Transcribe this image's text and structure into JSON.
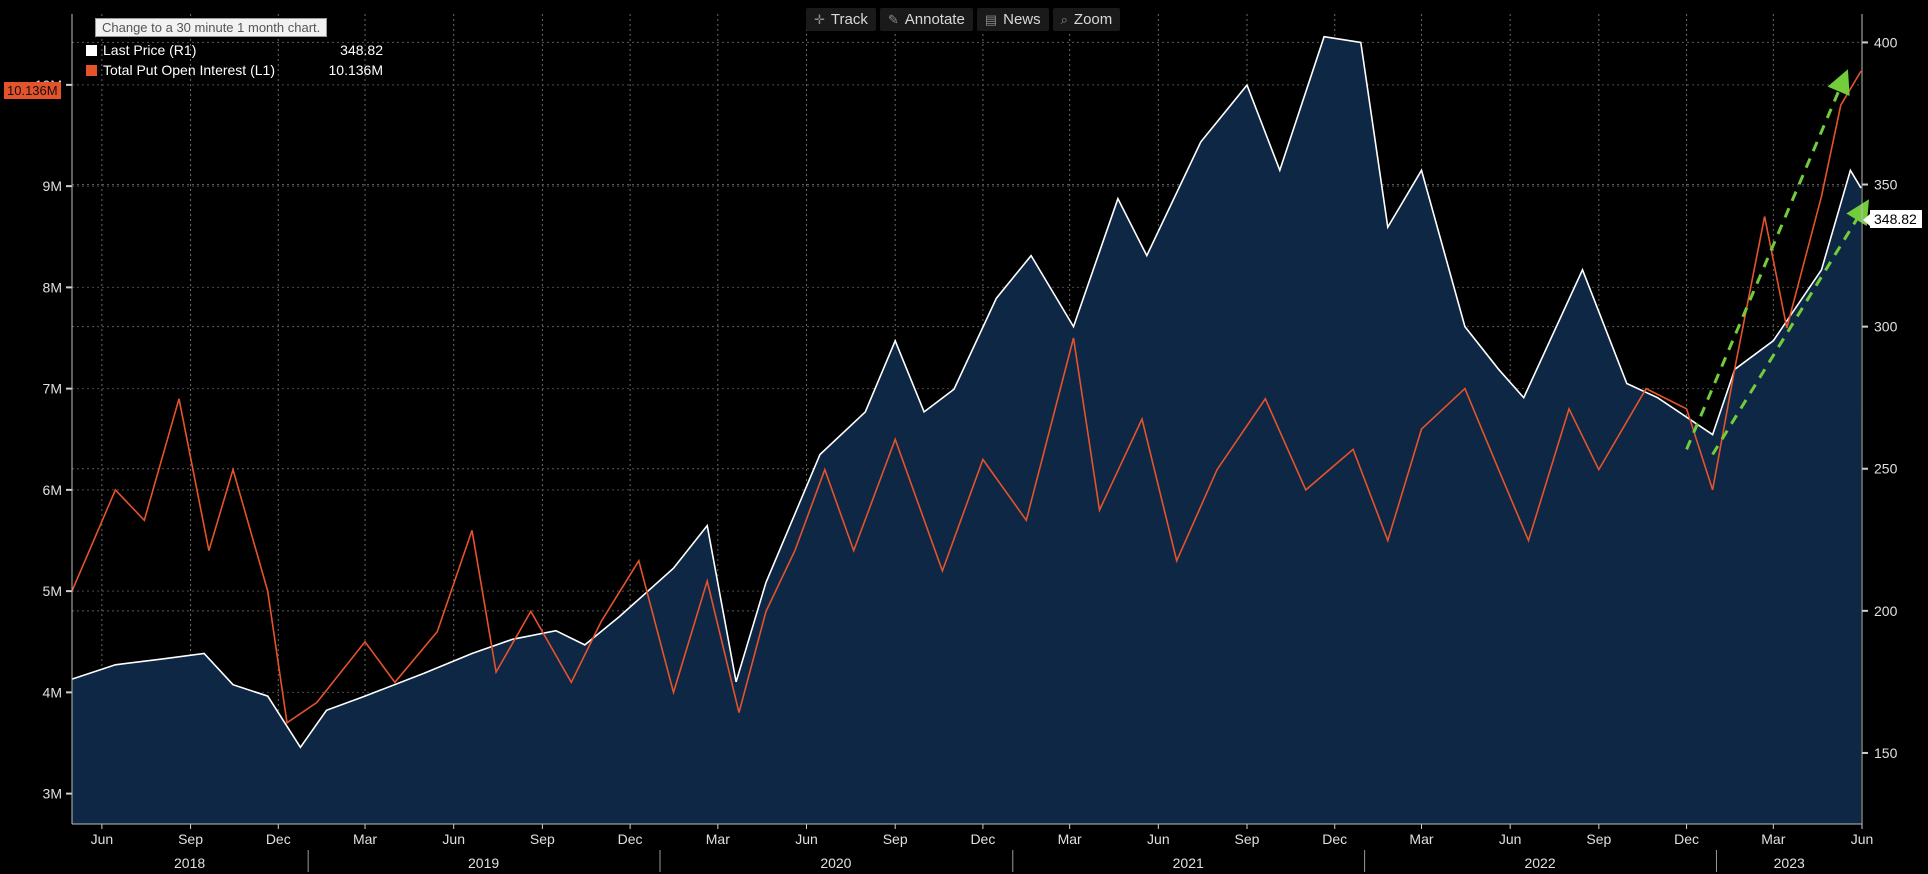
{
  "toolbar": {
    "track": "Track",
    "annotate": "Annotate",
    "news": "News",
    "zoom": "Zoom"
  },
  "tooltip": "Change to a 30 minute 1 month chart.",
  "legend": [
    {
      "label": "Last Price  (R1)",
      "value": "348.82",
      "color": "#ffffff"
    },
    {
      "label": "Total Put Open Interest  (L1)",
      "value": "10.136M",
      "color": "#e5532b"
    }
  ],
  "last_value_tags": {
    "left": "10.136M",
    "right": "348.82"
  },
  "chart_data": {
    "type": "line",
    "x_range": [
      "2018-05-01",
      "2023-06-01"
    ],
    "x_ticks": [
      {
        "date": "2018-06-01",
        "label": "Jun"
      },
      {
        "date": "2018-09-01",
        "label": "Sep"
      },
      {
        "date": "2018-12-01",
        "label": "Dec"
      },
      {
        "date": "2019-03-01",
        "label": "Mar"
      },
      {
        "date": "2019-06-01",
        "label": "Jun"
      },
      {
        "date": "2019-09-01",
        "label": "Sep"
      },
      {
        "date": "2019-12-01",
        "label": "Dec"
      },
      {
        "date": "2020-03-01",
        "label": "Mar"
      },
      {
        "date": "2020-06-01",
        "label": "Jun"
      },
      {
        "date": "2020-09-01",
        "label": "Sep"
      },
      {
        "date": "2020-12-01",
        "label": "Dec"
      },
      {
        "date": "2021-03-01",
        "label": "Mar"
      },
      {
        "date": "2021-06-01",
        "label": "Jun"
      },
      {
        "date": "2021-09-01",
        "label": "Sep"
      },
      {
        "date": "2021-12-01",
        "label": "Dec"
      },
      {
        "date": "2022-03-01",
        "label": "Mar"
      },
      {
        "date": "2022-06-01",
        "label": "Jun"
      },
      {
        "date": "2022-09-01",
        "label": "Sep"
      },
      {
        "date": "2022-12-01",
        "label": "Dec"
      },
      {
        "date": "2023-03-01",
        "label": "Mar"
      },
      {
        "date": "2023-06-01",
        "label": "Jun"
      }
    ],
    "years": [
      "2018",
      "2019",
      "2020",
      "2021",
      "2022",
      "2023"
    ],
    "y_left": {
      "range": [
        2700000,
        10700000
      ],
      "ticks": [
        "3M",
        "4M",
        "5M",
        "6M",
        "7M",
        "8M",
        "9M",
        "10M"
      ]
    },
    "y_right": {
      "range": [
        125,
        410
      ],
      "ticks": [
        "150",
        "200",
        "250",
        "300",
        "350",
        "400"
      ]
    },
    "grid": true,
    "legend_position": "top-left",
    "series": [
      {
        "name": "Last Price",
        "axis": "right",
        "color": "#ffffff",
        "fill": "#0e2744",
        "points": [
          [
            "2018-05-01",
            176
          ],
          [
            "2018-06-15",
            181
          ],
          [
            "2018-08-01",
            183
          ],
          [
            "2018-09-15",
            185
          ],
          [
            "2018-10-15",
            174
          ],
          [
            "2018-11-20",
            170
          ],
          [
            "2018-12-24",
            152
          ],
          [
            "2019-01-20",
            165
          ],
          [
            "2019-03-01",
            170
          ],
          [
            "2019-05-01",
            178
          ],
          [
            "2019-06-20",
            185
          ],
          [
            "2019-08-01",
            190
          ],
          [
            "2019-09-15",
            193
          ],
          [
            "2019-10-15",
            188
          ],
          [
            "2019-11-20",
            198
          ],
          [
            "2020-01-15",
            215
          ],
          [
            "2020-02-19",
            230
          ],
          [
            "2020-03-20",
            175
          ],
          [
            "2020-04-20",
            210
          ],
          [
            "2020-06-15",
            255
          ],
          [
            "2020-08-01",
            270
          ],
          [
            "2020-09-01",
            295
          ],
          [
            "2020-10-01",
            270
          ],
          [
            "2020-11-01",
            278
          ],
          [
            "2020-12-15",
            310
          ],
          [
            "2021-01-20",
            325
          ],
          [
            "2021-03-05",
            300
          ],
          [
            "2021-04-20",
            345
          ],
          [
            "2021-05-20",
            325
          ],
          [
            "2021-07-15",
            365
          ],
          [
            "2021-09-01",
            385
          ],
          [
            "2021-10-05",
            355
          ],
          [
            "2021-11-20",
            402
          ],
          [
            "2021-12-28",
            400
          ],
          [
            "2022-01-25",
            335
          ],
          [
            "2022-03-01",
            355
          ],
          [
            "2022-04-15",
            300
          ],
          [
            "2022-05-20",
            285
          ],
          [
            "2022-06-15",
            275
          ],
          [
            "2022-08-15",
            320
          ],
          [
            "2022-09-30",
            280
          ],
          [
            "2022-11-01",
            275
          ],
          [
            "2022-12-28",
            262
          ],
          [
            "2023-01-20",
            285
          ],
          [
            "2023-03-01",
            295
          ],
          [
            "2023-04-20",
            320
          ],
          [
            "2023-05-20",
            355
          ],
          [
            "2023-05-31",
            348.82
          ]
        ]
      },
      {
        "name": "Total Put Open Interest",
        "axis": "left",
        "color": "#e5532b",
        "points": [
          [
            "2018-05-01",
            5.0
          ],
          [
            "2018-06-15",
            6.0
          ],
          [
            "2018-07-15",
            5.7
          ],
          [
            "2018-08-20",
            6.9
          ],
          [
            "2018-09-20",
            5.4
          ],
          [
            "2018-10-15",
            6.2
          ],
          [
            "2018-11-20",
            5.0
          ],
          [
            "2018-12-10",
            3.7
          ],
          [
            "2019-01-10",
            3.9
          ],
          [
            "2019-03-01",
            4.5
          ],
          [
            "2019-04-01",
            4.1
          ],
          [
            "2019-05-15",
            4.6
          ],
          [
            "2019-06-20",
            5.6
          ],
          [
            "2019-07-15",
            4.2
          ],
          [
            "2019-08-20",
            4.8
          ],
          [
            "2019-10-01",
            4.1
          ],
          [
            "2019-11-01",
            4.7
          ],
          [
            "2019-12-10",
            5.3
          ],
          [
            "2020-01-15",
            4.0
          ],
          [
            "2020-02-19",
            5.1
          ],
          [
            "2020-03-23",
            3.8
          ],
          [
            "2020-04-20",
            4.8
          ],
          [
            "2020-05-20",
            5.4
          ],
          [
            "2020-06-20",
            6.2
          ],
          [
            "2020-07-20",
            5.4
          ],
          [
            "2020-09-01",
            6.5
          ],
          [
            "2020-10-20",
            5.2
          ],
          [
            "2020-12-01",
            6.3
          ],
          [
            "2021-01-15",
            5.7
          ],
          [
            "2021-03-05",
            7.5
          ],
          [
            "2021-04-01",
            5.8
          ],
          [
            "2021-05-15",
            6.7
          ],
          [
            "2021-06-20",
            5.3
          ],
          [
            "2021-08-01",
            6.2
          ],
          [
            "2021-09-20",
            6.9
          ],
          [
            "2021-11-01",
            6.0
          ],
          [
            "2021-12-20",
            6.4
          ],
          [
            "2022-01-25",
            5.5
          ],
          [
            "2022-03-01",
            6.6
          ],
          [
            "2022-04-15",
            7.0
          ],
          [
            "2022-05-20",
            6.2
          ],
          [
            "2022-06-20",
            5.5
          ],
          [
            "2022-08-01",
            6.8
          ],
          [
            "2022-09-01",
            6.2
          ],
          [
            "2022-10-20",
            7.0
          ],
          [
            "2022-12-01",
            6.8
          ],
          [
            "2022-12-28",
            6.0
          ],
          [
            "2023-01-20",
            7.2
          ],
          [
            "2023-02-20",
            8.7
          ],
          [
            "2023-03-15",
            7.6
          ],
          [
            "2023-04-20",
            8.9
          ],
          [
            "2023-05-10",
            9.8
          ],
          [
            "2023-05-31",
            10.136
          ]
        ]
      }
    ],
    "annotations": [
      {
        "type": "dashed-arrow",
        "color": "#72cc3c",
        "from": [
          "2022-12-01",
          6.4
        ],
        "to": [
          "2023-05-15",
          10.1
        ],
        "axis": "left"
      },
      {
        "type": "dashed-arrow",
        "color": "#72cc3c",
        "from": [
          "2022-12-28",
          255
        ],
        "to": [
          "2023-06-05",
          343
        ],
        "axis": "right"
      }
    ]
  }
}
